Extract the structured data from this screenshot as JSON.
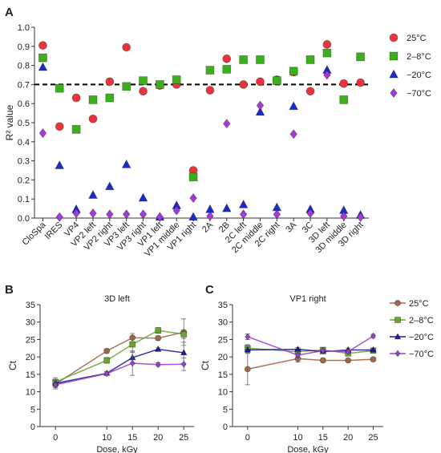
{
  "panels": {
    "A": "A",
    "B": "B",
    "C": "C"
  },
  "colors": {
    "25C": "#e8343a",
    "2_8C": "#3cb01c",
    "neg20C": "#1a2bc9",
    "neg70C": "#a23ad8",
    "b_25C": "#a0674a",
    "b_2_8C": "#6aa534",
    "b_neg20C": "#1a1a9a",
    "b_neg70C": "#9b3fd2",
    "threshold": "#000000"
  },
  "chart_data": [
    {
      "type": "scatter",
      "ylabel": "R² value",
      "ylim": [
        0.0,
        1.0
      ],
      "yticks": [
        "0.0",
        "0.1",
        "0.2",
        "0.3",
        "0.4",
        "0.5",
        "0.6",
        "0.7",
        "0.8",
        "0.9",
        "1.0"
      ],
      "threshold": 0.7,
      "categories": [
        "CloSpa",
        "IRES",
        "VP4",
        "VP2 left",
        "VP2 right",
        "VP3 left",
        "VP3 right",
        "VP1 left",
        "VP1 middle",
        "VP1 right",
        "2A",
        "2B",
        "2C left",
        "2C middle",
        "2C right",
        "3A",
        "3C",
        "3D left",
        "3D middle",
        "3D right"
      ],
      "series": [
        {
          "name": "25°C",
          "marker": "circle",
          "values": [
            0.905,
            0.48,
            0.63,
            0.52,
            0.715,
            0.895,
            0.665,
            0.695,
            0.7,
            0.25,
            0.67,
            0.835,
            0.7,
            0.715,
            0.725,
            0.765,
            0.665,
            0.91,
            0.705,
            0.71
          ]
        },
        {
          "name": "2–8°C",
          "marker": "square",
          "values": [
            0.84,
            0.68,
            0.465,
            0.62,
            0.63,
            0.69,
            0.72,
            0.7,
            0.725,
            0.215,
            0.775,
            0.78,
            0.83,
            0.83,
            0.72,
            0.77,
            0.83,
            0.865,
            0.62,
            0.845
          ]
        },
        {
          "name": "−20°C",
          "marker": "triangle",
          "values": [
            0.79,
            0.275,
            0.045,
            0.12,
            0.165,
            0.28,
            0.105,
            0.005,
            0.065,
            0.005,
            0.045,
            0.05,
            0.07,
            0.555,
            0.055,
            0.585,
            0.045,
            0.775,
            0.04,
            0.015
          ]
        },
        {
          "name": "−70°C",
          "marker": "diamond",
          "values": [
            0.445,
            0.005,
            0.025,
            0.025,
            0.02,
            0.02,
            0.02,
            0.005,
            0.04,
            0.105,
            0.01,
            0.495,
            0.02,
            0.59,
            0.02,
            0.44,
            0.025,
            0.75,
            0.01,
            0.005
          ]
        }
      ],
      "legend_position": "right"
    },
    {
      "type": "line",
      "title": "3D left",
      "xlabel": "Dose, kGy",
      "ylabel": "Ct",
      "x": [
        0,
        10,
        15,
        20,
        25
      ],
      "xlim": [
        -3,
        27
      ],
      "ylim": [
        0,
        35
      ],
      "yticks": [
        0,
        5,
        10,
        15,
        20,
        25,
        30,
        35
      ],
      "series": [
        {
          "name": "25°C",
          "marker": "circle",
          "values": [
            12.2,
            21.7,
            25.5,
            25.4,
            27.1
          ],
          "err": [
            1.0,
            0.6,
            1.2,
            0.6,
            3.8
          ]
        },
        {
          "name": "2–8°C",
          "marker": "square",
          "values": [
            12.8,
            19.0,
            23.6,
            27.6,
            26.5
          ],
          "err": [
            1.2,
            0.8,
            2.3,
            0.8,
            1.2
          ]
        },
        {
          "name": "−20°C",
          "marker": "triangle",
          "values": [
            12.4,
            15.3,
            19.8,
            22.2,
            21.2
          ],
          "err": [
            1.0,
            0.5,
            1.8,
            0.4,
            3.0
          ]
        },
        {
          "name": "−70°C",
          "marker": "diamond",
          "values": [
            12.0,
            15.2,
            18.2,
            17.8,
            17.9
          ],
          "err": [
            1.2,
            0.5,
            3.5,
            0.5,
            1.8
          ]
        }
      ]
    },
    {
      "type": "line",
      "title": "VP1 right",
      "xlabel": "Dose, kGy",
      "ylabel": "Ct",
      "x": [
        0,
        10,
        15,
        20,
        25
      ],
      "xlim": [
        -3,
        27
      ],
      "ylim": [
        0,
        35
      ],
      "yticks": [
        0,
        5,
        10,
        15,
        20,
        25,
        30,
        35
      ],
      "series": [
        {
          "name": "25°C",
          "marker": "circle",
          "values": [
            16.5,
            19.5,
            19.0,
            19.0,
            19.3
          ],
          "err": [
            4.5,
            1.0,
            0.6,
            0.4,
            0.5
          ]
        },
        {
          "name": "2–8°C",
          "marker": "square",
          "values": [
            22.5,
            21.5,
            22.0,
            21.0,
            21.8
          ],
          "err": [
            1.0,
            0.6,
            0.6,
            0.5,
            0.6
          ]
        },
        {
          "name": "−20°C",
          "marker": "triangle",
          "values": [
            22.0,
            22.2,
            21.5,
            22.0,
            22.0
          ],
          "err": [
            0.8,
            0.5,
            0.5,
            0.5,
            0.5
          ]
        },
        {
          "name": "−70°C",
          "marker": "diamond",
          "values": [
            25.8,
            20.5,
            21.8,
            21.5,
            26.0
          ],
          "err": [
            0.8,
            0.6,
            0.8,
            0.5,
            0.5
          ]
        }
      ],
      "legend_position": "right"
    }
  ]
}
